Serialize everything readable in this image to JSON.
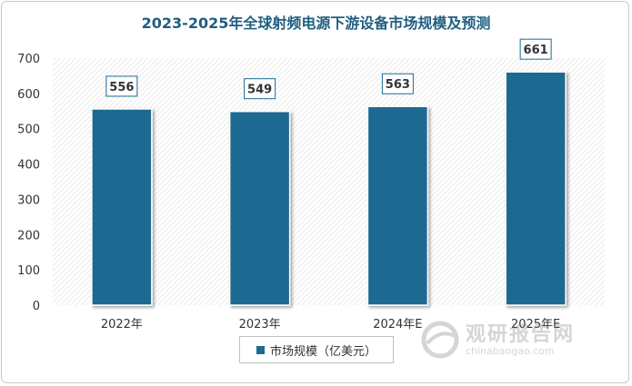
{
  "chart_data": {
    "type": "bar",
    "title": "2023-2025年全球射频电源下游设备市场规模及预测",
    "categories": [
      "2022年",
      "2023年",
      "2024年E",
      "2025年E"
    ],
    "series": [
      {
        "name": "市场规模（亿美元）",
        "values": [
          556,
          549,
          563,
          661
        ]
      }
    ],
    "data_labels": [
      "556",
      "549",
      "563",
      "661"
    ],
    "ylim": [
      0,
      700
    ],
    "yticks": [
      "0",
      "100",
      "200",
      "300",
      "400",
      "500",
      "600",
      "700"
    ],
    "ytick_values": [
      0,
      100,
      200,
      300,
      400,
      500,
      600,
      700
    ],
    "grid": false,
    "legend_position": "bottom",
    "bar_color": "#1b6a91"
  },
  "watermark": {
    "main": "观研报告网",
    "sub": "chinabaogao.com"
  }
}
